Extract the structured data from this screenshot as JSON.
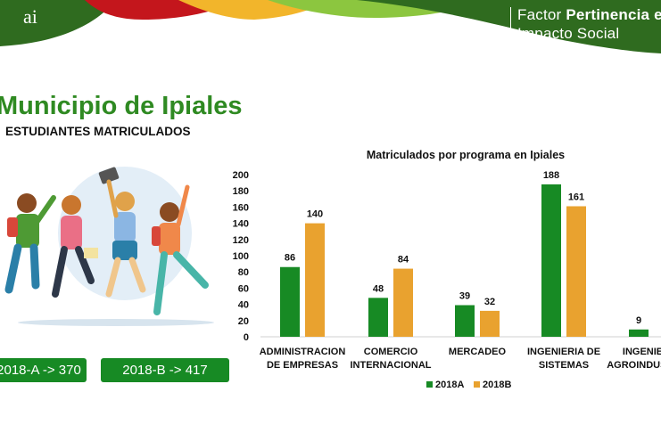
{
  "header": {
    "factor_line1_prefix": "Factor",
    "factor_line1_bold": "Pertinencia e",
    "factor_line2": "Impacto Social",
    "logo_text": "ai",
    "colors": {
      "green": "#2f6b1f",
      "red": "#c4161c",
      "yellow": "#f2b52b",
      "lightgreen": "#8cc63f"
    }
  },
  "page": {
    "title": "Municipio de Ipiales",
    "subtitle": "ESTUDIANTES MATRICULADOS"
  },
  "totals": {
    "a_label": "2018-A -> 370",
    "b_label": "2018-B ->  417"
  },
  "chart_data": {
    "type": "bar",
    "title": "Matriculados por programa en Ipiales",
    "categories": [
      [
        "ADMINISTRACION",
        "DE EMPRESAS"
      ],
      [
        "COMERCIO",
        "INTERNACIONAL"
      ],
      [
        "MERCADEO"
      ],
      [
        "INGENIERIA DE",
        "SISTEMAS"
      ],
      [
        "INGENIERIA",
        "AGROINDUSTRIAL"
      ]
    ],
    "series": [
      {
        "name": "2018A",
        "values": [
          86,
          48,
          39,
          188,
          9
        ],
        "color": "#178a24"
      },
      {
        "name": "2018B",
        "values": [
          140,
          84,
          32,
          161,
          null
        ],
        "color": "#e9a22f"
      }
    ],
    "yticks": [
      0,
      20,
      40,
      60,
      80,
      100,
      120,
      140,
      160,
      180,
      200
    ],
    "ylim": [
      0,
      200
    ],
    "xlabel": "",
    "ylabel": "",
    "grid": false,
    "legend": "bottom-center"
  }
}
